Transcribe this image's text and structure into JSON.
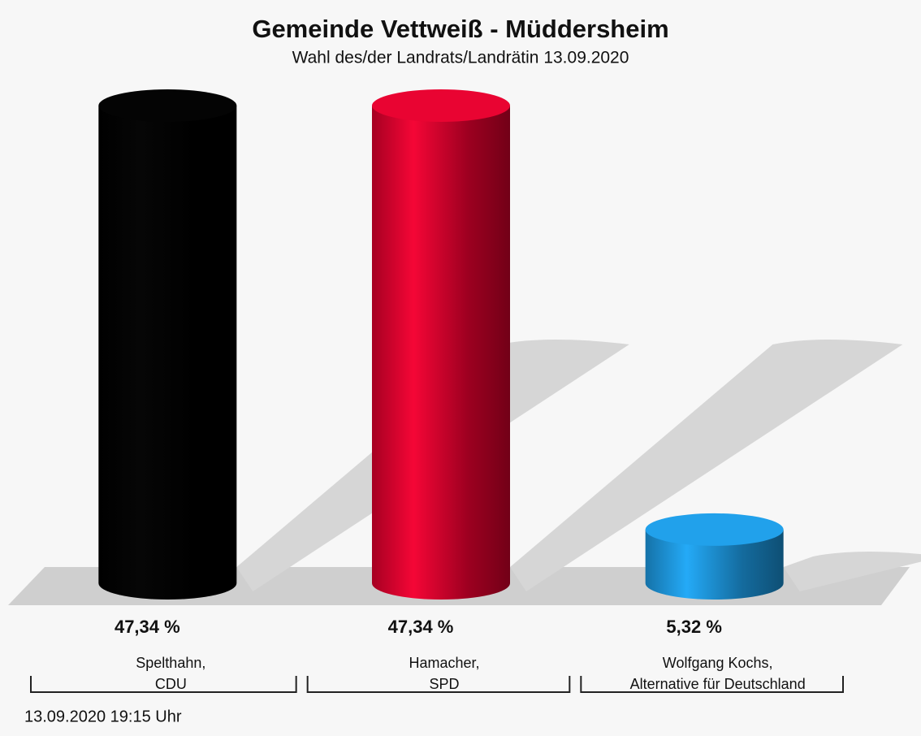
{
  "chart_data": {
    "type": "bar",
    "title": "Gemeinde Vettweiß - Müddersheim",
    "subtitle": "Wahl des/der Landrats/Landrätin 13.09.2020",
    "categories": [
      [
        "Spelthahn,",
        "CDU"
      ],
      [
        "Hamacher,",
        "SPD"
      ],
      [
        "Wolfgang Kochs,",
        "Alternative für Deutschland"
      ]
    ],
    "values": [
      47.34,
      47.34,
      5.32
    ],
    "value_labels": [
      "47,34 %",
      "47,34 %",
      "5,32 %"
    ],
    "colors": [
      "#000000",
      "#d0002a",
      "#1a8fd2"
    ],
    "footer": "13.09.2020 19:15 Uhr"
  }
}
